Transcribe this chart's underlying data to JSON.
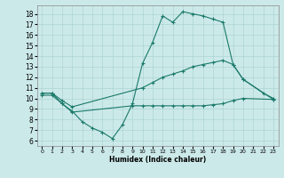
{
  "xlabel": "Humidex (Indice chaleur)",
  "bg_color": "#cce9e9",
  "line_color": "#1a7a6a",
  "grid_color": "#add4d4",
  "ylim": [
    5.5,
    18.8
  ],
  "xlim": [
    -0.5,
    23.5
  ],
  "yticks": [
    6,
    7,
    8,
    9,
    10,
    11,
    12,
    13,
    14,
    15,
    16,
    17,
    18
  ],
  "xticks": [
    0,
    1,
    2,
    3,
    4,
    5,
    6,
    7,
    8,
    9,
    10,
    11,
    12,
    13,
    14,
    15,
    16,
    17,
    18,
    19,
    20,
    21,
    22,
    23
  ],
  "lines": [
    {
      "x": [
        0,
        1,
        2,
        3,
        4,
        5,
        6,
        7,
        8,
        9,
        10,
        11,
        12,
        13,
        14,
        15,
        16,
        17,
        18,
        19,
        20,
        22,
        23
      ],
      "y": [
        10.5,
        10.5,
        9.5,
        8.8,
        7.8,
        7.2,
        6.8,
        6.2,
        7.5,
        9.5,
        13.3,
        15.3,
        17.8,
        17.2,
        18.2,
        18.0,
        17.8,
        17.5,
        17.2,
        13.2,
        11.8,
        10.5,
        10.0
      ]
    },
    {
      "x": [
        0,
        1,
        2,
        3,
        10,
        11,
        12,
        13,
        14,
        15,
        16,
        17,
        18,
        19,
        20,
        23
      ],
      "y": [
        10.5,
        10.5,
        9.8,
        9.2,
        11.0,
        11.5,
        12.0,
        12.3,
        12.6,
        13.0,
        13.2,
        13.4,
        13.6,
        13.2,
        11.8,
        9.9
      ]
    },
    {
      "x": [
        0,
        1,
        2,
        3,
        9,
        10,
        11,
        12,
        13,
        14,
        15,
        16,
        17,
        18,
        19,
        20,
        23
      ],
      "y": [
        10.3,
        10.3,
        9.5,
        8.7,
        9.3,
        9.3,
        9.3,
        9.3,
        9.3,
        9.3,
        9.3,
        9.3,
        9.4,
        9.5,
        9.8,
        10.0,
        9.9
      ]
    }
  ]
}
